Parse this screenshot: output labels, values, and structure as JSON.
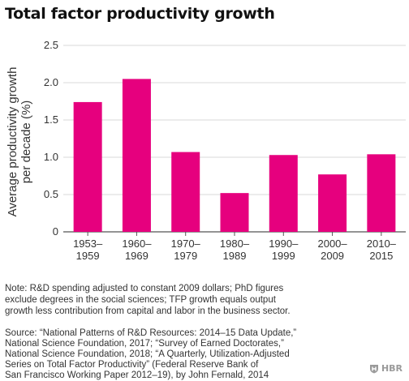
{
  "chart_data": {
    "type": "bar",
    "title": "Total factor productivity growth",
    "ylabel": "Average productivity growth per decade (%)",
    "ylabel_lines": [
      "Average productivity growth",
      "per decade (%)"
    ],
    "xlabel": "",
    "categories": [
      "1953–1959",
      "1960–1969",
      "1970–1979",
      "1980–1989",
      "1990–1999",
      "2000–2009",
      "2010–2015"
    ],
    "category_lines": [
      [
        "1953–",
        "1959"
      ],
      [
        "1960–",
        "1969"
      ],
      [
        "1970–",
        "1979"
      ],
      [
        "1980–",
        "1989"
      ],
      [
        "1990–",
        "1999"
      ],
      [
        "2000–",
        "2009"
      ],
      [
        "2010–",
        "2015"
      ]
    ],
    "values": [
      1.74,
      2.05,
      1.07,
      0.52,
      1.03,
      0.77,
      1.04
    ],
    "ylim": [
      0,
      2.5
    ],
    "yticks": [
      "0",
      "0.5",
      "1.0",
      "1.5",
      "2.0",
      "2.5"
    ],
    "grid": true,
    "bar_color": "#e6007e",
    "grid_color": "#d8d8d8"
  },
  "note": "Note: R&D spending adjusted to constant 2009 dollars; PhD figures\nexclude degrees in the social sciences; TFP growth equals output\ngrowth less contribution from capital and labor in the business sector.",
  "source": "Source: “National Patterns of R&D Resources: 2014–15 Data Update,”\nNational Science Foundation, 2017; “Survey of Earned Doctorates,”\nNational Science Foundation, 2018; “A Quarterly, Utilization-Adjusted\nSeries on Total Factor Productivity” (Federal Reserve Bank of\nSan Francisco Working Paper 2012–19), by John Fernald, 2014",
  "logo": "HBR"
}
